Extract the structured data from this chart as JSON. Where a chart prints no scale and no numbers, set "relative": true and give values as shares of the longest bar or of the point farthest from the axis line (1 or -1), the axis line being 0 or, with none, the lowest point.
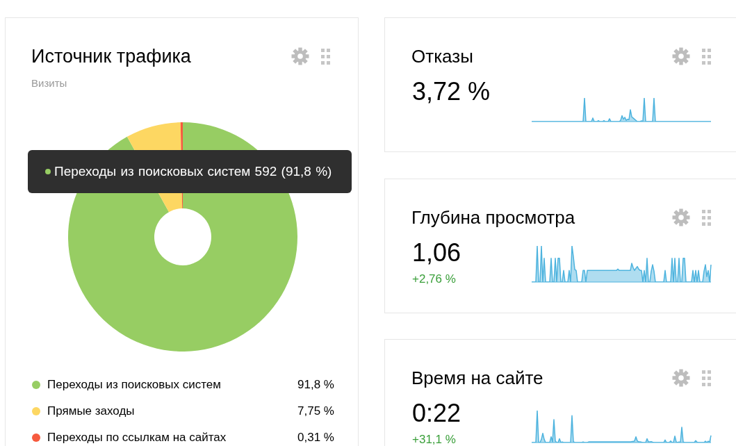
{
  "chart_data": [
    {
      "type": "donut",
      "title": "Источник трафика",
      "subtitle": "Визиты",
      "categories": [
        "Переходы из поисковых систем",
        "Прямые заходы",
        "Переходы по ссылкам на сайтах"
      ],
      "values": [
        91.8,
        7.75,
        0.31
      ],
      "colors": [
        "#97cd63",
        "#fdd762",
        "#f65a3e"
      ],
      "value_labels": [
        "91,8 %",
        "7,75 %",
        "0,31 %"
      ],
      "legend": "bottom",
      "annotations": [
        "Переходы из поисковых систем 592 (91,8 %)"
      ]
    },
    {
      "type": "area",
      "title": "Отказы",
      "annotations": [
        "3,72 %"
      ],
      "relative": true,
      "color": "#4db3de",
      "categories": [
        null,
        null,
        null,
        null,
        null,
        null,
        null,
        null,
        null,
        null,
        null,
        null,
        null,
        null,
        null,
        null,
        null,
        null,
        null,
        null,
        null,
        null,
        null,
        null,
        null,
        null,
        null,
        null,
        null,
        null,
        null,
        null,
        null,
        null,
        null,
        null,
        null,
        null,
        null,
        null,
        null,
        null,
        null,
        null,
        null,
        null,
        null,
        null,
        null,
        null,
        null,
        null,
        null,
        null,
        null,
        null,
        null,
        null,
        null,
        null,
        null,
        null,
        null,
        null,
        null,
        null,
        null,
        null,
        null,
        null,
        null,
        null,
        null,
        null,
        null,
        null,
        null,
        null,
        null,
        null,
        null,
        null,
        null,
        null,
        null,
        null,
        null,
        null,
        null,
        null,
        null,
        null,
        null,
        null,
        null,
        null,
        null,
        null,
        null,
        null,
        null,
        null,
        null,
        null,
        null,
        null,
        null,
        null,
        null,
        null,
        null,
        null,
        null,
        null,
        null,
        null,
        null,
        null,
        null,
        null,
        null,
        null,
        null,
        null,
        null,
        null,
        null,
        null,
        null,
        null
      ],
      "values": [
        0,
        0,
        0,
        0,
        0,
        0,
        0,
        0,
        0,
        0,
        0,
        0,
        0,
        0,
        0,
        0,
        0,
        0,
        0,
        0,
        0,
        0,
        0,
        0,
        0,
        0,
        0,
        0,
        0,
        0,
        0,
        0,
        0,
        0,
        0,
        0,
        0,
        0,
        1,
        0,
        0,
        0,
        0,
        0,
        0.15,
        0,
        0,
        0,
        0.04,
        0,
        0,
        0,
        0.04,
        0,
        0,
        0,
        0.12,
        0,
        0,
        0,
        0,
        0,
        0,
        0,
        0.05,
        0.25,
        0.1,
        0.18,
        0.05,
        0.1,
        0.08,
        0.5,
        0.2,
        0.15,
        0.1,
        0.05,
        0,
        0,
        0,
        0.03,
        0,
        1,
        0,
        0,
        0,
        0,
        0,
        0,
        1,
        0,
        0,
        0,
        0,
        0,
        0,
        0,
        0,
        0,
        0,
        0,
        0,
        0,
        0,
        0,
        0,
        0,
        0,
        0,
        0,
        0,
        0,
        0,
        0,
        0,
        0,
        0,
        0,
        0,
        0,
        0,
        0,
        0,
        0,
        0,
        0,
        0,
        0,
        0,
        0,
        0
      ]
    },
    {
      "type": "area",
      "title": "Глубина просмотра",
      "annotations": [
        "1,06",
        "+2,76 %"
      ],
      "relative": true,
      "color": "#4db3de",
      "categories": [
        null,
        null,
        null,
        null,
        null,
        null,
        null,
        null,
        null,
        null,
        null,
        null,
        null,
        null,
        null,
        null,
        null,
        null,
        null,
        null,
        null,
        null,
        null,
        null,
        null,
        null,
        null,
        null,
        null,
        null,
        null,
        null,
        null,
        null,
        null,
        null,
        null,
        null,
        null,
        null,
        null,
        null,
        null,
        null,
        null,
        null,
        null,
        null,
        null,
        null,
        null,
        null,
        null,
        null,
        null,
        null,
        null,
        null,
        null,
        null,
        null,
        null,
        null,
        null,
        null,
        null,
        null,
        null,
        null,
        null,
        null,
        null,
        null,
        null,
        null,
        null,
        null,
        null,
        null,
        null,
        null,
        null,
        null,
        null,
        null,
        null,
        null,
        null,
        null,
        null,
        null,
        null,
        null,
        null,
        null,
        null,
        null,
        null,
        null,
        null,
        null,
        null,
        null,
        null,
        null,
        null,
        null,
        null,
        null,
        null,
        null,
        null,
        null,
        null,
        null,
        null,
        null,
        null,
        null,
        null,
        null,
        null,
        null,
        null,
        null,
        null,
        null,
        null,
        null,
        null
      ],
      "values": [
        0,
        0,
        0,
        0,
        1,
        0,
        0,
        1,
        0,
        0.66,
        0,
        0,
        0,
        0,
        0.66,
        0,
        0,
        0.66,
        0,
        0.66,
        0.66,
        0,
        0,
        0.32,
        0,
        0,
        0,
        0.32,
        0,
        1,
        0.7,
        0.35,
        0.32,
        0,
        0,
        0,
        0,
        0.32,
        0.32,
        0,
        0.32,
        0.32,
        0.32,
        0.32,
        0.32,
        0.32,
        0.32,
        0.32,
        0.32,
        0.32,
        0.32,
        0.32,
        0.32,
        0.32,
        0.32,
        0.32,
        0.32,
        0.32,
        0.32,
        0.32,
        0.32,
        0.32,
        0.36,
        0.32,
        0.32,
        0.32,
        0.32,
        0.32,
        0.32,
        0.32,
        0.32,
        0.32,
        0.52,
        0.4,
        0.32,
        0.38,
        0.43,
        0.36,
        0.32,
        0.32,
        0,
        0.32,
        0,
        0.66,
        0,
        0,
        0.3,
        0.48,
        0.3,
        0,
        0,
        0,
        0,
        0,
        0,
        0,
        0.32,
        0,
        0,
        0,
        0,
        0.66,
        0,
        0.66,
        0,
        0,
        0.66,
        0,
        0,
        0.66,
        0.66,
        0,
        0,
        0,
        0,
        0,
        0.32,
        0,
        0.32,
        0,
        0.32,
        0,
        0,
        0,
        0.3,
        0.48,
        0.15,
        0.32,
        0,
        0.48
      ]
    },
    {
      "type": "area",
      "title": "Время на сайте",
      "annotations": [
        "0:22",
        "+31,1 %"
      ],
      "relative": true,
      "color": "#4db3de",
      "categories": [
        null,
        null,
        null,
        null,
        null,
        null,
        null,
        null,
        null,
        null,
        null,
        null,
        null,
        null,
        null,
        null,
        null,
        null,
        null,
        null,
        null,
        null,
        null,
        null,
        null,
        null,
        null,
        null,
        null,
        null,
        null,
        null,
        null,
        null,
        null,
        null,
        null,
        null,
        null,
        null,
        null,
        null,
        null,
        null,
        null,
        null,
        null,
        null,
        null,
        null,
        null,
        null,
        null,
        null,
        null,
        null,
        null,
        null,
        null,
        null,
        null,
        null,
        null,
        null,
        null,
        null,
        null,
        null,
        null,
        null,
        null,
        null,
        null,
        null,
        null,
        null,
        null,
        null,
        null,
        null,
        null,
        null,
        null,
        null,
        null,
        null,
        null,
        null,
        null,
        null,
        null,
        null,
        null,
        null,
        null,
        null,
        null,
        null,
        null,
        null,
        null,
        null,
        null,
        null,
        null,
        null,
        null,
        null,
        null,
        null,
        null,
        null,
        null,
        null,
        null,
        null,
        null,
        null,
        null,
        null,
        null,
        null,
        null,
        null,
        null,
        null,
        null,
        null,
        null,
        null
      ],
      "values": [
        0,
        0,
        0,
        0,
        1,
        0,
        0,
        0.1,
        0.29,
        0.1,
        0,
        0,
        0,
        0,
        0.18,
        0.02,
        0.72,
        0.05,
        0,
        0,
        0.12,
        0,
        0.02,
        0,
        0,
        0,
        0,
        0,
        0,
        0.84,
        0.03,
        0,
        0,
        0,
        0,
        0,
        0,
        0.02,
        0,
        0,
        0,
        0.02,
        0.02,
        0.02,
        0.02,
        0.02,
        0.02,
        0.02,
        0.02,
        0.02,
        0.02,
        0.02,
        0.02,
        0.02,
        0.02,
        0.02,
        0.02,
        0.02,
        0.02,
        0.02,
        0.02,
        0.02,
        0.02,
        0.02,
        0.02,
        0.02,
        0.02,
        0.02,
        0.02,
        0.02,
        0.02,
        0.02,
        0.03,
        0.03,
        0.05,
        0.18,
        0.05,
        0.02,
        0.02,
        0.01,
        0,
        0,
        0,
        0.12,
        0.02,
        0.02,
        0.03,
        0.01,
        0,
        0,
        0,
        0,
        0,
        0,
        0,
        0,
        0.08,
        0,
        0,
        0,
        0.05,
        0,
        0,
        0.2,
        0.02,
        0,
        0.02,
        0,
        0.48,
        0.02,
        0,
        0,
        0,
        0,
        0,
        0,
        0,
        0,
        0.06,
        0.01,
        0,
        0,
        0,
        0,
        0,
        0.04,
        0,
        0.04,
        0.02,
        0.22
      ]
    }
  ]
}
